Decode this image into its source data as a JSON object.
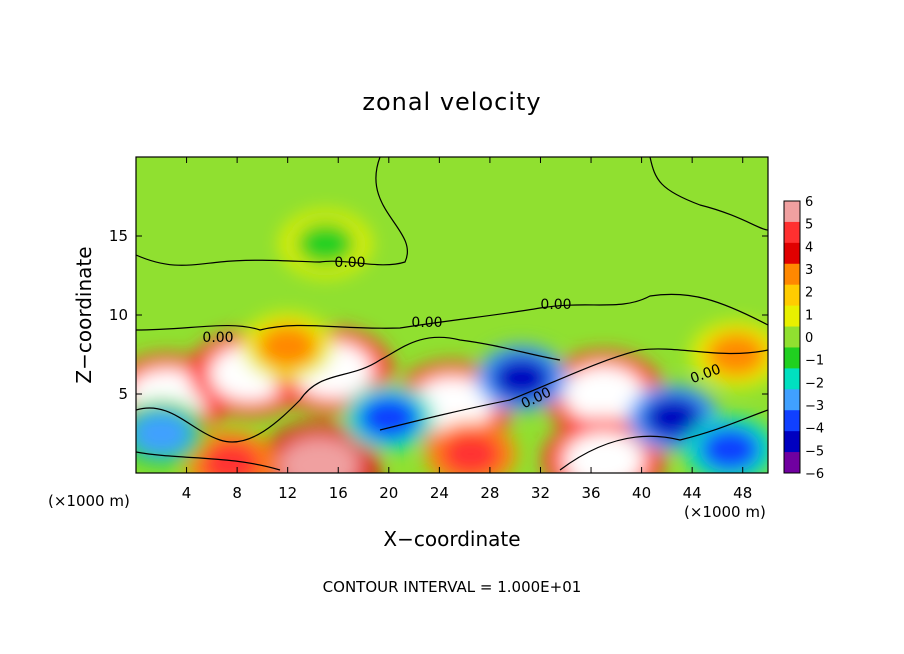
{
  "chart_data": {
    "type": "heatmap",
    "title": "zonal velocity",
    "xlabel": "X−coordinate",
    "ylabel": "Z−coordinate",
    "x_unit_label": "(×1000 m)",
    "xlim": [
      0,
      50
    ],
    "ylim": [
      0,
      20
    ],
    "x_ticks": [
      4,
      8,
      12,
      16,
      20,
      24,
      28,
      32,
      36,
      40,
      44,
      48
    ],
    "y_ticks": [
      5,
      10,
      15
    ],
    "colorbar": {
      "range": [
        -6,
        6
      ],
      "ticks": [
        6,
        5,
        4,
        3,
        2,
        1,
        0,
        -1,
        -2,
        -3,
        -4,
        -5,
        -6
      ],
      "tick_labels": [
        "6",
        "5",
        "4",
        "3",
        "2",
        "1",
        "0",
        "−1",
        "−2",
        "−3",
        "−4",
        "−5",
        "−6"
      ],
      "colors": [
        "#f0a0a0",
        "#ff3030",
        "#e00000",
        "#ff8800",
        "#ffcc00",
        "#e8f000",
        "#90e030",
        "#20d020",
        "#00e0c0",
        "#40a0ff",
        "#1040ff",
        "#0000c0",
        "#7000a0"
      ]
    },
    "background_value": 0.5,
    "blobs": [
      {
        "x": 2.5,
        "z": 4.8,
        "v": 7,
        "label": "strong positive"
      },
      {
        "x": 9.0,
        "z": 6.3,
        "v": 7,
        "label": "strong positive"
      },
      {
        "x": 15.5,
        "z": 6.5,
        "v": 7,
        "label": "strong positive"
      },
      {
        "x": 25.0,
        "z": 4.3,
        "v": 7,
        "label": "strong positive"
      },
      {
        "x": 37.0,
        "z": 5.0,
        "v": 7,
        "label": "strong positive"
      },
      {
        "x": 26.5,
        "z": 1.2,
        "v": 5,
        "label": "positive"
      },
      {
        "x": 37.0,
        "z": 0.8,
        "v": 7,
        "label": "strong positive"
      },
      {
        "x": 14.5,
        "z": 0.5,
        "v": 6,
        "label": "positive"
      },
      {
        "x": 7.5,
        "z": 0.6,
        "v": 5,
        "label": "positive"
      },
      {
        "x": 42.5,
        "z": 3.5,
        "v": -5,
        "label": "negative"
      },
      {
        "x": 20.0,
        "z": 3.5,
        "v": -4,
        "label": "negative"
      },
      {
        "x": 30.5,
        "z": 6.0,
        "v": -5,
        "label": "negative"
      },
      {
        "x": 47.0,
        "z": 1.5,
        "v": -4,
        "label": "negative"
      },
      {
        "x": 2.0,
        "z": 2.5,
        "v": -3,
        "label": "negative"
      },
      {
        "x": 12.0,
        "z": 8.0,
        "v": 3,
        "label": "positive"
      },
      {
        "x": 47.5,
        "z": 7.5,
        "v": 3,
        "label": "positive"
      },
      {
        "x": 15.0,
        "z": 14.5,
        "v": -1,
        "label": "weak negative"
      }
    ],
    "contour_labels": [
      "0.00",
      "0.00",
      "0.00",
      "0.00",
      "0.00",
      "0.00"
    ],
    "contour_interval_text": "CONTOUR INTERVAL =  1.000E+01"
  }
}
